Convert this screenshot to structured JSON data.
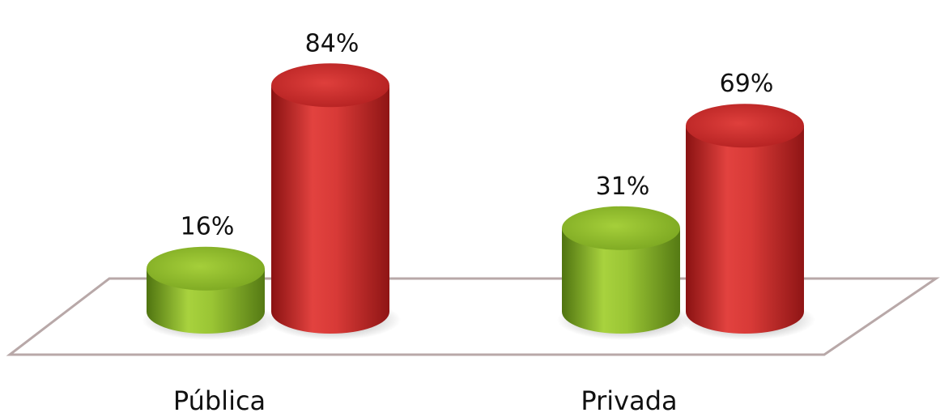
{
  "chart_data": {
    "type": "bar",
    "style": "3d-cylinder",
    "categories": [
      "Pública",
      "Privada"
    ],
    "series": [
      {
        "values": [
          16,
          31
        ],
        "color": "#8dbb2a"
      },
      {
        "values": [
          84,
          69
        ],
        "color": "#cf2a2a"
      }
    ],
    "data_labels": [
      [
        "16%",
        "31%"
      ],
      [
        "84%",
        "69%"
      ]
    ],
    "ylim": [
      0,
      100
    ],
    "grid": false,
    "legend": "none",
    "floor_color": "#b8a8a8"
  }
}
